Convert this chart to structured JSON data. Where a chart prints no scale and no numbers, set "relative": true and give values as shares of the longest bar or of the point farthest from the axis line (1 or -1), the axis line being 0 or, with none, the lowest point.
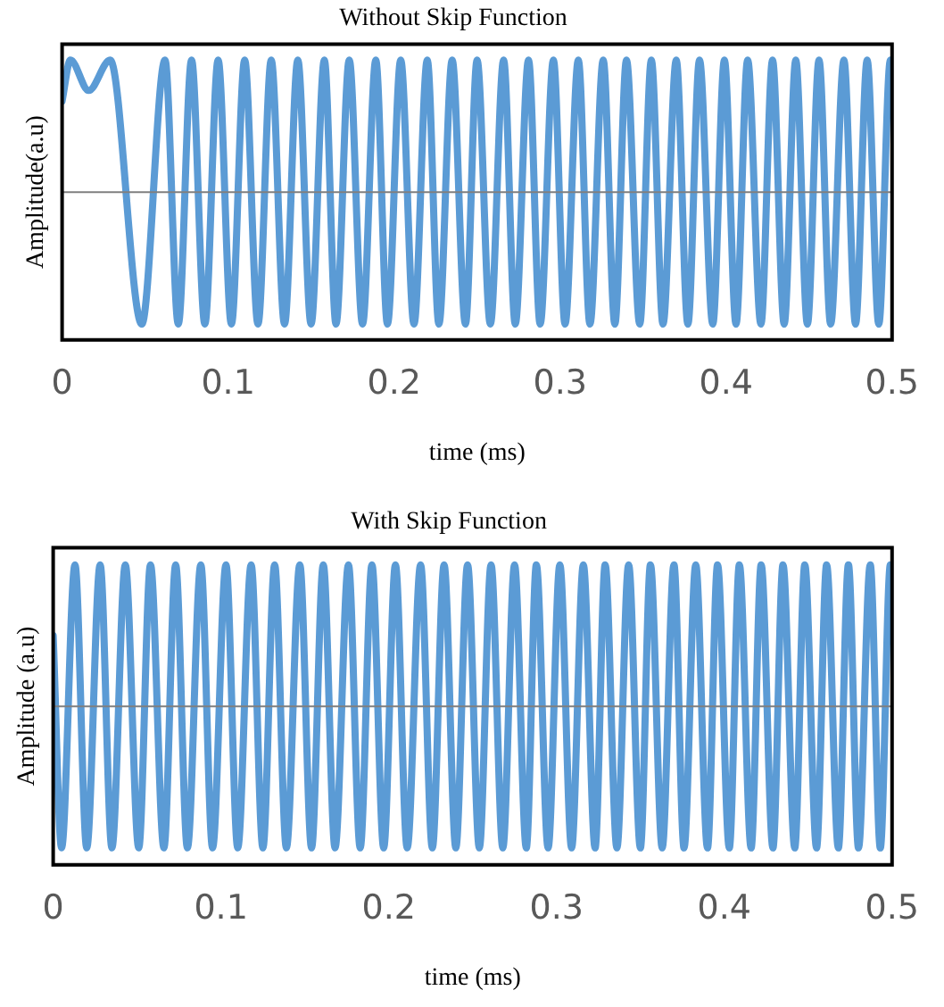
{
  "chart_data": [
    {
      "type": "line",
      "title": "Without Skip Function",
      "xlabel": "time (ms)",
      "ylabel": "Amplitude(a.u)",
      "relative": true,
      "grid": false,
      "legend": false,
      "marker": "none",
      "line_style": "solid",
      "xlim": [
        0,
        0.5
      ],
      "xticks": [
        0,
        0.1,
        0.2,
        0.3,
        0.4,
        0.5
      ],
      "x": [
        0,
        0.005,
        0.016,
        0.029,
        0.048,
        0.062,
        0.07,
        0.078,
        0.086,
        0.094,
        0.102,
        0.11,
        0.118,
        0.126,
        0.134,
        0.142,
        0.15,
        0.158,
        0.165,
        0.173,
        0.181,
        0.189,
        0.196,
        0.204,
        0.212,
        0.22,
        0.227,
        0.235,
        0.243,
        0.25,
        0.258,
        0.266,
        0.273,
        0.281,
        0.288,
        0.296,
        0.303,
        0.311,
        0.318,
        0.326,
        0.333,
        0.34,
        0.348,
        0.355,
        0.362,
        0.37,
        0.377,
        0.384,
        0.392,
        0.399,
        0.406,
        0.413,
        0.421,
        0.428,
        0.435,
        0.442,
        0.449,
        0.456,
        0.463,
        0.471,
        0.478,
        0.485,
        0.492,
        0.499,
        0.5
      ],
      "series": [
        {
          "color": "#5b9bd5",
          "values": [
            0.69,
            1,
            0.77,
            1,
            -1,
            1,
            -1,
            1,
            -1,
            1,
            -1,
            1,
            -1,
            1,
            -1,
            1,
            -1,
            1,
            -1,
            1,
            -1,
            1,
            -1,
            1,
            -1,
            1,
            -1,
            1,
            -1,
            1,
            -1,
            1,
            -1,
            1,
            -1,
            1,
            -1,
            1,
            -1,
            1,
            -1,
            1,
            -1,
            1,
            -1,
            1,
            -1,
            1,
            -1,
            1,
            -1,
            1,
            -1,
            1,
            -1,
            1,
            -1,
            1,
            -1,
            1,
            -1,
            1,
            -1,
            1,
            0.99
          ]
        }
      ]
    },
    {
      "type": "line",
      "title": "With Skip Function",
      "xlabel": "time (ms)",
      "ylabel": "Amplitude (a.u)",
      "relative": true,
      "grid": false,
      "legend": false,
      "marker": "none",
      "line_style": "solid",
      "xlim": [
        0,
        0.5
      ],
      "xticks": [
        0,
        0.1,
        0.2,
        0.3,
        0.4,
        0.5
      ],
      "x": [
        0,
        0.005,
        0.013,
        0.02,
        0.028,
        0.035,
        0.043,
        0.051,
        0.058,
        0.066,
        0.073,
        0.08,
        0.088,
        0.095,
        0.103,
        0.11,
        0.118,
        0.125,
        0.132,
        0.139,
        0.147,
        0.154,
        0.161,
        0.168,
        0.176,
        0.183,
        0.19,
        0.197,
        0.204,
        0.211,
        0.219,
        0.226,
        0.233,
        0.24,
        0.247,
        0.254,
        0.261,
        0.268,
        0.275,
        0.282,
        0.288,
        0.295,
        0.302,
        0.309,
        0.316,
        0.323,
        0.329,
        0.336,
        0.343,
        0.35,
        0.356,
        0.363,
        0.37,
        0.376,
        0.383,
        0.39,
        0.396,
        0.403,
        0.409,
        0.416,
        0.422,
        0.429,
        0.435,
        0.442,
        0.448,
        0.455,
        0.461,
        0.468,
        0.474,
        0.48,
        0.487,
        0.493,
        0.499,
        0.5
      ],
      "series": [
        {
          "color": "#5b9bd5",
          "values": [
            0.5,
            -1,
            1,
            -1,
            1,
            -1,
            1,
            -1,
            1,
            -1,
            1,
            -1,
            1,
            -1,
            1,
            -1,
            1,
            -1,
            1,
            -1,
            1,
            -1,
            1,
            -1,
            1,
            -1,
            1,
            -1,
            1,
            -1,
            1,
            -1,
            1,
            -1,
            1,
            -1,
            1,
            -1,
            1,
            -1,
            1,
            -1,
            1,
            -1,
            1,
            -1,
            1,
            -1,
            1,
            -1,
            1,
            -1,
            1,
            -1,
            1,
            -1,
            1,
            -1,
            1,
            -1,
            1,
            -1,
            1,
            -1,
            1,
            -1,
            1,
            -1,
            1,
            -1,
            1,
            -1,
            1,
            0.98
          ]
        }
      ]
    }
  ]
}
